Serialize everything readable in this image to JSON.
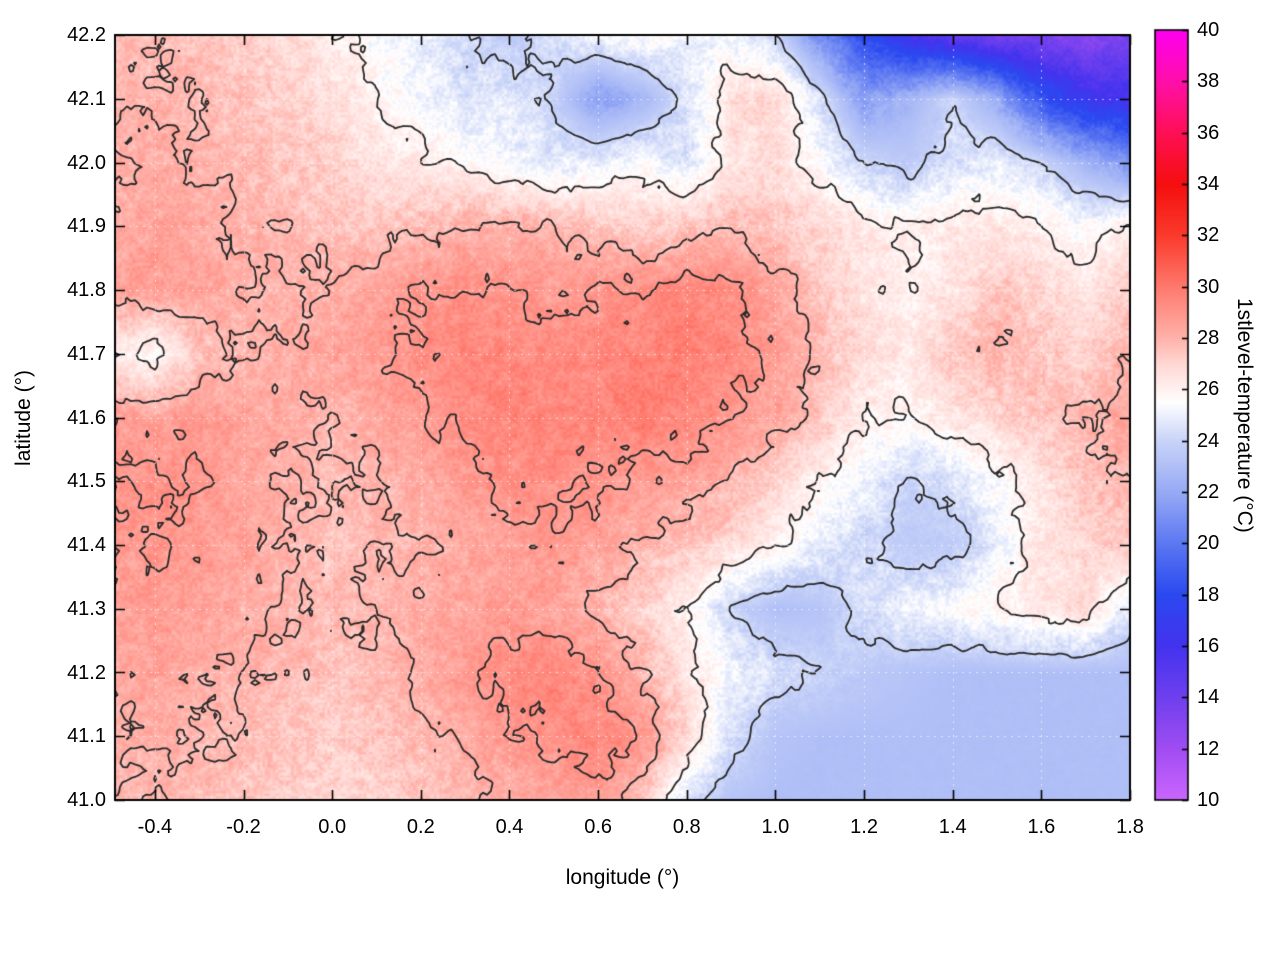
{
  "figure": {
    "xlabel": "longitude (°)",
    "ylabel": "latitude (°)",
    "cblabel": "1stlevel-temperature (°C)",
    "background": "#ffffff",
    "frame_color": "#000000",
    "contour_color": "#2a2a2a",
    "grid_line_color": "rgba(255,255,255,0.6)"
  },
  "chart_data": {
    "type": "heatmap",
    "title": "",
    "xlabel": "longitude (°)",
    "ylabel": "latitude (°)",
    "colorbar_label": "1stlevel-temperature (°C)",
    "xlim": [
      -0.49,
      1.8
    ],
    "ylim": [
      41.0,
      42.2
    ],
    "clim": [
      10,
      40
    ],
    "grid_on": true,
    "legend": "colorbar-right",
    "xticks": [
      -0.4,
      -0.2,
      0.0,
      0.2,
      0.4,
      0.6,
      0.8,
      1.0,
      1.2,
      1.4,
      1.6,
      1.8
    ],
    "xtick_labels": [
      "-0.4",
      "-0.2",
      "0.0",
      "0.2",
      "0.4",
      "0.6",
      "0.8",
      "1.0",
      "1.2",
      "1.4",
      "1.6",
      "1.8"
    ],
    "yticks": [
      41.0,
      41.1,
      41.2,
      41.3,
      41.4,
      41.5,
      41.6,
      41.7,
      41.8,
      41.9,
      42.0,
      42.1,
      42.2
    ],
    "ytick_labels": [
      "41.0",
      "41.1",
      "41.2",
      "41.3",
      "41.4",
      "41.5",
      "41.6",
      "41.7",
      "41.8",
      "41.9",
      "42.0",
      "42.1",
      "42.2"
    ],
    "cbticks": [
      10,
      12,
      14,
      16,
      18,
      20,
      22,
      24,
      26,
      28,
      30,
      32,
      34,
      36,
      38,
      40
    ],
    "cbtick_labels": [
      "10",
      "12",
      "14",
      "16",
      "18",
      "20",
      "22",
      "24",
      "26",
      "28",
      "30",
      "32",
      "34",
      "36",
      "38",
      "40"
    ],
    "contour_levels": [
      24,
      26,
      28,
      29
    ],
    "sea_temp_c": 23.0,
    "grid_lons": [
      -0.5,
      -0.4,
      -0.3,
      -0.2,
      -0.1,
      0.0,
      0.1,
      0.2,
      0.3,
      0.4,
      0.5,
      0.6,
      0.7,
      0.8,
      0.9,
      1.0,
      1.1,
      1.2,
      1.3,
      1.4,
      1.5,
      1.6,
      1.7,
      1.8
    ],
    "grid_lats": [
      42.2,
      42.1,
      42.0,
      41.9,
      41.8,
      41.7,
      41.6,
      41.5,
      41.4,
      41.3,
      41.2,
      41.1,
      41.0
    ],
    "grid_temps_c": [
      [
        27.5,
        27.8,
        27.6,
        27.2,
        26.8,
        26.2,
        25.5,
        25.0,
        24.2,
        23.5,
        24.5,
        25.2,
        25.8,
        25.2,
        25.0,
        24.0,
        21.0,
        18.0,
        16.0,
        14.5,
        13.8,
        13.5,
        13.0,
        13.5
      ],
      [
        27.8,
        28.0,
        27.8,
        27.5,
        27.2,
        26.8,
        26.0,
        25.2,
        24.5,
        24.8,
        23.8,
        21.5,
        22.5,
        24.5,
        26.8,
        27.0,
        24.5,
        21.5,
        22.5,
        24.0,
        22.0,
        18.5,
        16.5,
        16.0
      ],
      [
        28.0,
        28.2,
        28.0,
        27.8,
        27.5,
        27.2,
        26.5,
        26.2,
        25.8,
        25.2,
        24.8,
        25.0,
        25.5,
        24.5,
        26.5,
        26.8,
        25.5,
        24.0,
        23.5,
        24.5,
        25.0,
        24.0,
        22.5,
        21.0
      ],
      [
        28.2,
        28.5,
        28.3,
        28.0,
        27.8,
        27.5,
        27.5,
        27.8,
        28.0,
        28.2,
        28.0,
        27.5,
        27.2,
        27.5,
        27.8,
        27.5,
        27.0,
        26.5,
        26.0,
        26.3,
        26.5,
        26.0,
        25.5,
        26.0
      ],
      [
        28.5,
        28.8,
        28.5,
        28.2,
        28.0,
        28.2,
        28.5,
        29.0,
        29.2,
        29.0,
        28.8,
        29.0,
        29.2,
        29.5,
        29.2,
        28.5,
        27.5,
        26.5,
        26.0,
        26.5,
        27.5,
        27.0,
        26.5,
        27.5
      ],
      [
        26.2,
        25.5,
        27.5,
        28.0,
        28.2,
        28.5,
        28.8,
        29.2,
        29.5,
        29.5,
        29.3,
        29.5,
        29.6,
        29.8,
        29.5,
        28.8,
        27.8,
        26.8,
        26.3,
        27.5,
        28.0,
        27.5,
        27.0,
        28.0
      ],
      [
        28.8,
        28.5,
        28.8,
        28.5,
        28.2,
        28.0,
        28.3,
        28.8,
        29.3,
        29.6,
        29.5,
        29.5,
        29.8,
        29.5,
        29.0,
        28.5,
        27.5,
        26.2,
        25.8,
        26.5,
        27.0,
        27.5,
        28.0,
        28.5
      ],
      [
        29.0,
        29.2,
        29.0,
        28.5,
        28.0,
        27.8,
        28.0,
        28.3,
        28.8,
        29.2,
        29.3,
        29.0,
        28.8,
        28.5,
        28.0,
        27.0,
        26.0,
        25.0,
        24.0,
        24.5,
        25.5,
        26.5,
        27.5,
        28.0
      ],
      [
        28.8,
        29.0,
        28.8,
        28.5,
        28.0,
        27.5,
        27.8,
        28.0,
        28.3,
        28.5,
        28.8,
        28.5,
        28.0,
        27.5,
        27.0,
        26.0,
        25.0,
        24.2,
        23.5,
        23.5,
        25.0,
        26.5,
        27.0,
        27.5
      ],
      [
        28.5,
        28.8,
        28.5,
        28.2,
        28.0,
        27.8,
        28.0,
        28.2,
        28.5,
        28.8,
        28.5,
        28.0,
        27.2,
        26.0,
        24.0,
        23.0,
        23.2,
        24.5,
        25.2,
        25.5,
        26.0,
        26.5,
        26.8,
        24.5
      ],
      [
        28.2,
        28.5,
        28.2,
        28.0,
        27.8,
        27.5,
        27.8,
        28.2,
        28.8,
        29.3,
        29.5,
        29.0,
        28.0,
        26.5,
        25.2,
        24.5,
        24.0,
        23.5,
        23.2,
        23.0,
        23.0,
        23.0,
        23.0,
        23.0
      ],
      [
        28.0,
        28.2,
        28.0,
        27.8,
        27.5,
        27.2,
        27.5,
        27.8,
        28.2,
        28.8,
        29.3,
        29.5,
        29.0,
        27.0,
        24.5,
        23.2,
        23.0,
        23.0,
        23.0,
        23.0,
        23.0,
        23.0,
        23.0,
        23.0
      ],
      [
        27.8,
        28.0,
        27.8,
        27.5,
        27.2,
        27.0,
        27.2,
        27.5,
        27.8,
        28.2,
        28.5,
        28.8,
        27.5,
        24.5,
        23.2,
        23.0,
        23.0,
        23.0,
        23.0,
        23.0,
        23.0,
        23.0,
        23.0,
        23.0
      ]
    ],
    "palette_stops": [
      [
        10,
        "#cc66ff"
      ],
      [
        12,
        "#a14df2"
      ],
      [
        14,
        "#7040ee"
      ],
      [
        16,
        "#4433ee"
      ],
      [
        18,
        "#2b49f0"
      ],
      [
        20,
        "#5c78f2"
      ],
      [
        22,
        "#97aaf5"
      ],
      [
        24,
        "#c9d4f8"
      ],
      [
        25.5,
        "#ffffff"
      ],
      [
        27,
        "#ffd8d4"
      ],
      [
        28,
        "#ffb3ab"
      ],
      [
        29,
        "#ff968c"
      ],
      [
        30,
        "#ff7a6e"
      ],
      [
        32,
        "#fb3b2d"
      ],
      [
        34,
        "#f50f0f"
      ],
      [
        36,
        "#ff0f55"
      ],
      [
        38,
        "#ff0faa"
      ],
      [
        40,
        "#ff00f0"
      ]
    ]
  }
}
